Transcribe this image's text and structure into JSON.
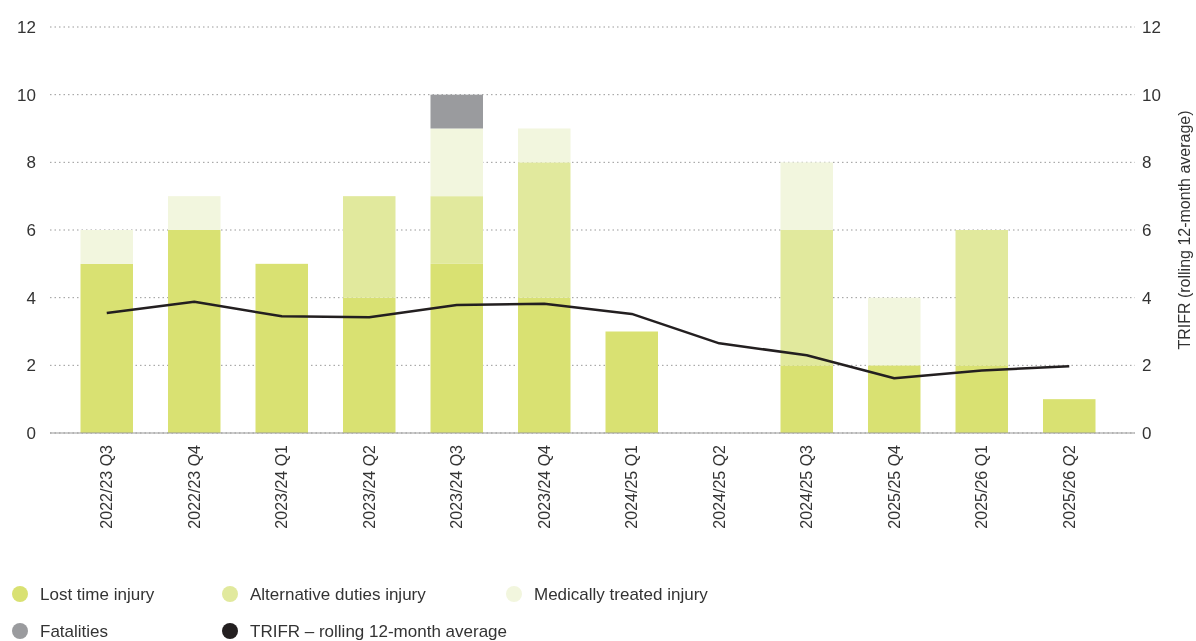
{
  "chart_data": {
    "type": "bar",
    "stacked": true,
    "categories": [
      "2022/23 Q3",
      "2022/23 Q4",
      "2023/24 Q1",
      "2023/24 Q2",
      "2023/24 Q3",
      "2023/24 Q4",
      "2024/25 Q1",
      "2024/25 Q2",
      "2024/25 Q3",
      "2025/25 Q4",
      "2025/26 Q1",
      "2025/26 Q2"
    ],
    "series": [
      {
        "name": "Lost time injury",
        "color": "#d9e172",
        "values": [
          5,
          6,
          5,
          4,
          5,
          4,
          3,
          0,
          2,
          2,
          2,
          1
        ]
      },
      {
        "name": "Alternative duties injury",
        "color": "#e1e99d",
        "values": [
          0,
          0,
          0,
          3,
          2,
          4,
          0,
          0,
          4,
          0,
          4,
          0
        ]
      },
      {
        "name": "Medically treated injury",
        "color": "#f2f6de",
        "values": [
          1,
          1,
          0,
          0,
          2,
          1,
          0,
          0,
          2,
          2,
          0,
          0
        ]
      },
      {
        "name": "Fatalities",
        "color": "#9a9b9e",
        "values": [
          0,
          0,
          0,
          0,
          1,
          0,
          0,
          0,
          0,
          0,
          0,
          0
        ]
      },
      {
        "name": "TRIFR – rolling 12-month average",
        "type": "line",
        "axis": "y2",
        "color": "#231f20",
        "values": [
          3.55,
          3.88,
          3.45,
          3.42,
          3.78,
          3.82,
          3.52,
          2.65,
          2.3,
          1.62,
          1.85,
          1.97
        ]
      }
    ],
    "ylim": [
      0,
      12
    ],
    "yticks": [
      0,
      2,
      4,
      6,
      8,
      10,
      12
    ],
    "y2lim": [
      0,
      12
    ],
    "y2ticks": [
      0,
      2,
      4,
      6,
      8,
      10,
      12
    ],
    "y2label": "TRIFR (rolling 12-month average)",
    "grid": "y",
    "legend": "bottom"
  }
}
